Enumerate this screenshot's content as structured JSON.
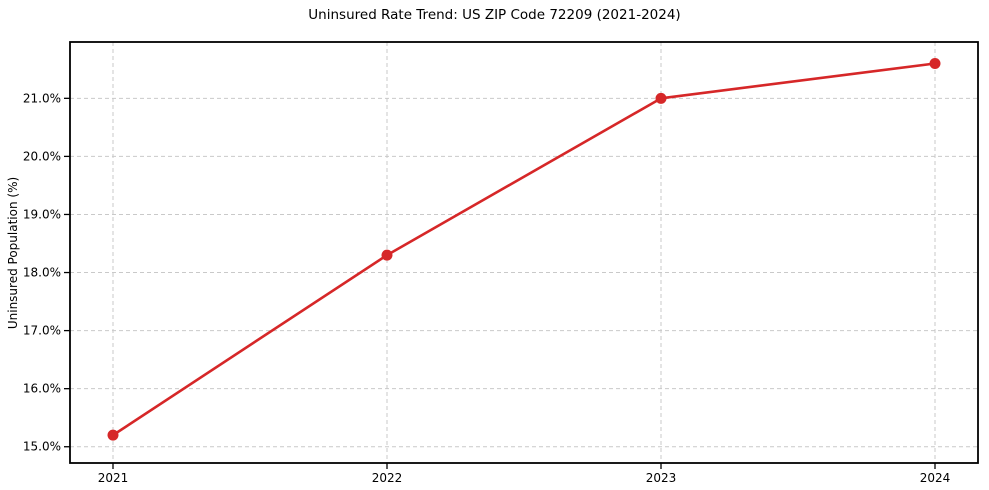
{
  "chart_data": {
    "type": "line",
    "title": "Uninsured Rate Trend: US ZIP Code 72209 (2021-2024)",
    "xlabel": "",
    "ylabel": "Uninsured Population (%)",
    "categories": [
      "2021",
      "2022",
      "2023",
      "2024"
    ],
    "series": [
      {
        "name": "Uninsured rate",
        "values": [
          15.2,
          18.3,
          21.0,
          21.6
        ]
      }
    ],
    "yticks": [
      15.0,
      16.0,
      17.0,
      18.0,
      19.0,
      20.0,
      21.0
    ],
    "ytick_suffix": "%",
    "ylim": [
      14.72,
      21.97
    ],
    "grid": true,
    "grid_style": "dashed",
    "legend_position": "none",
    "colors": {
      "line": "#d62728",
      "marker": "#d62728",
      "grid": "#c9c9c9",
      "axis": "#000000",
      "text": "#000000",
      "background": "#ffffff"
    }
  }
}
